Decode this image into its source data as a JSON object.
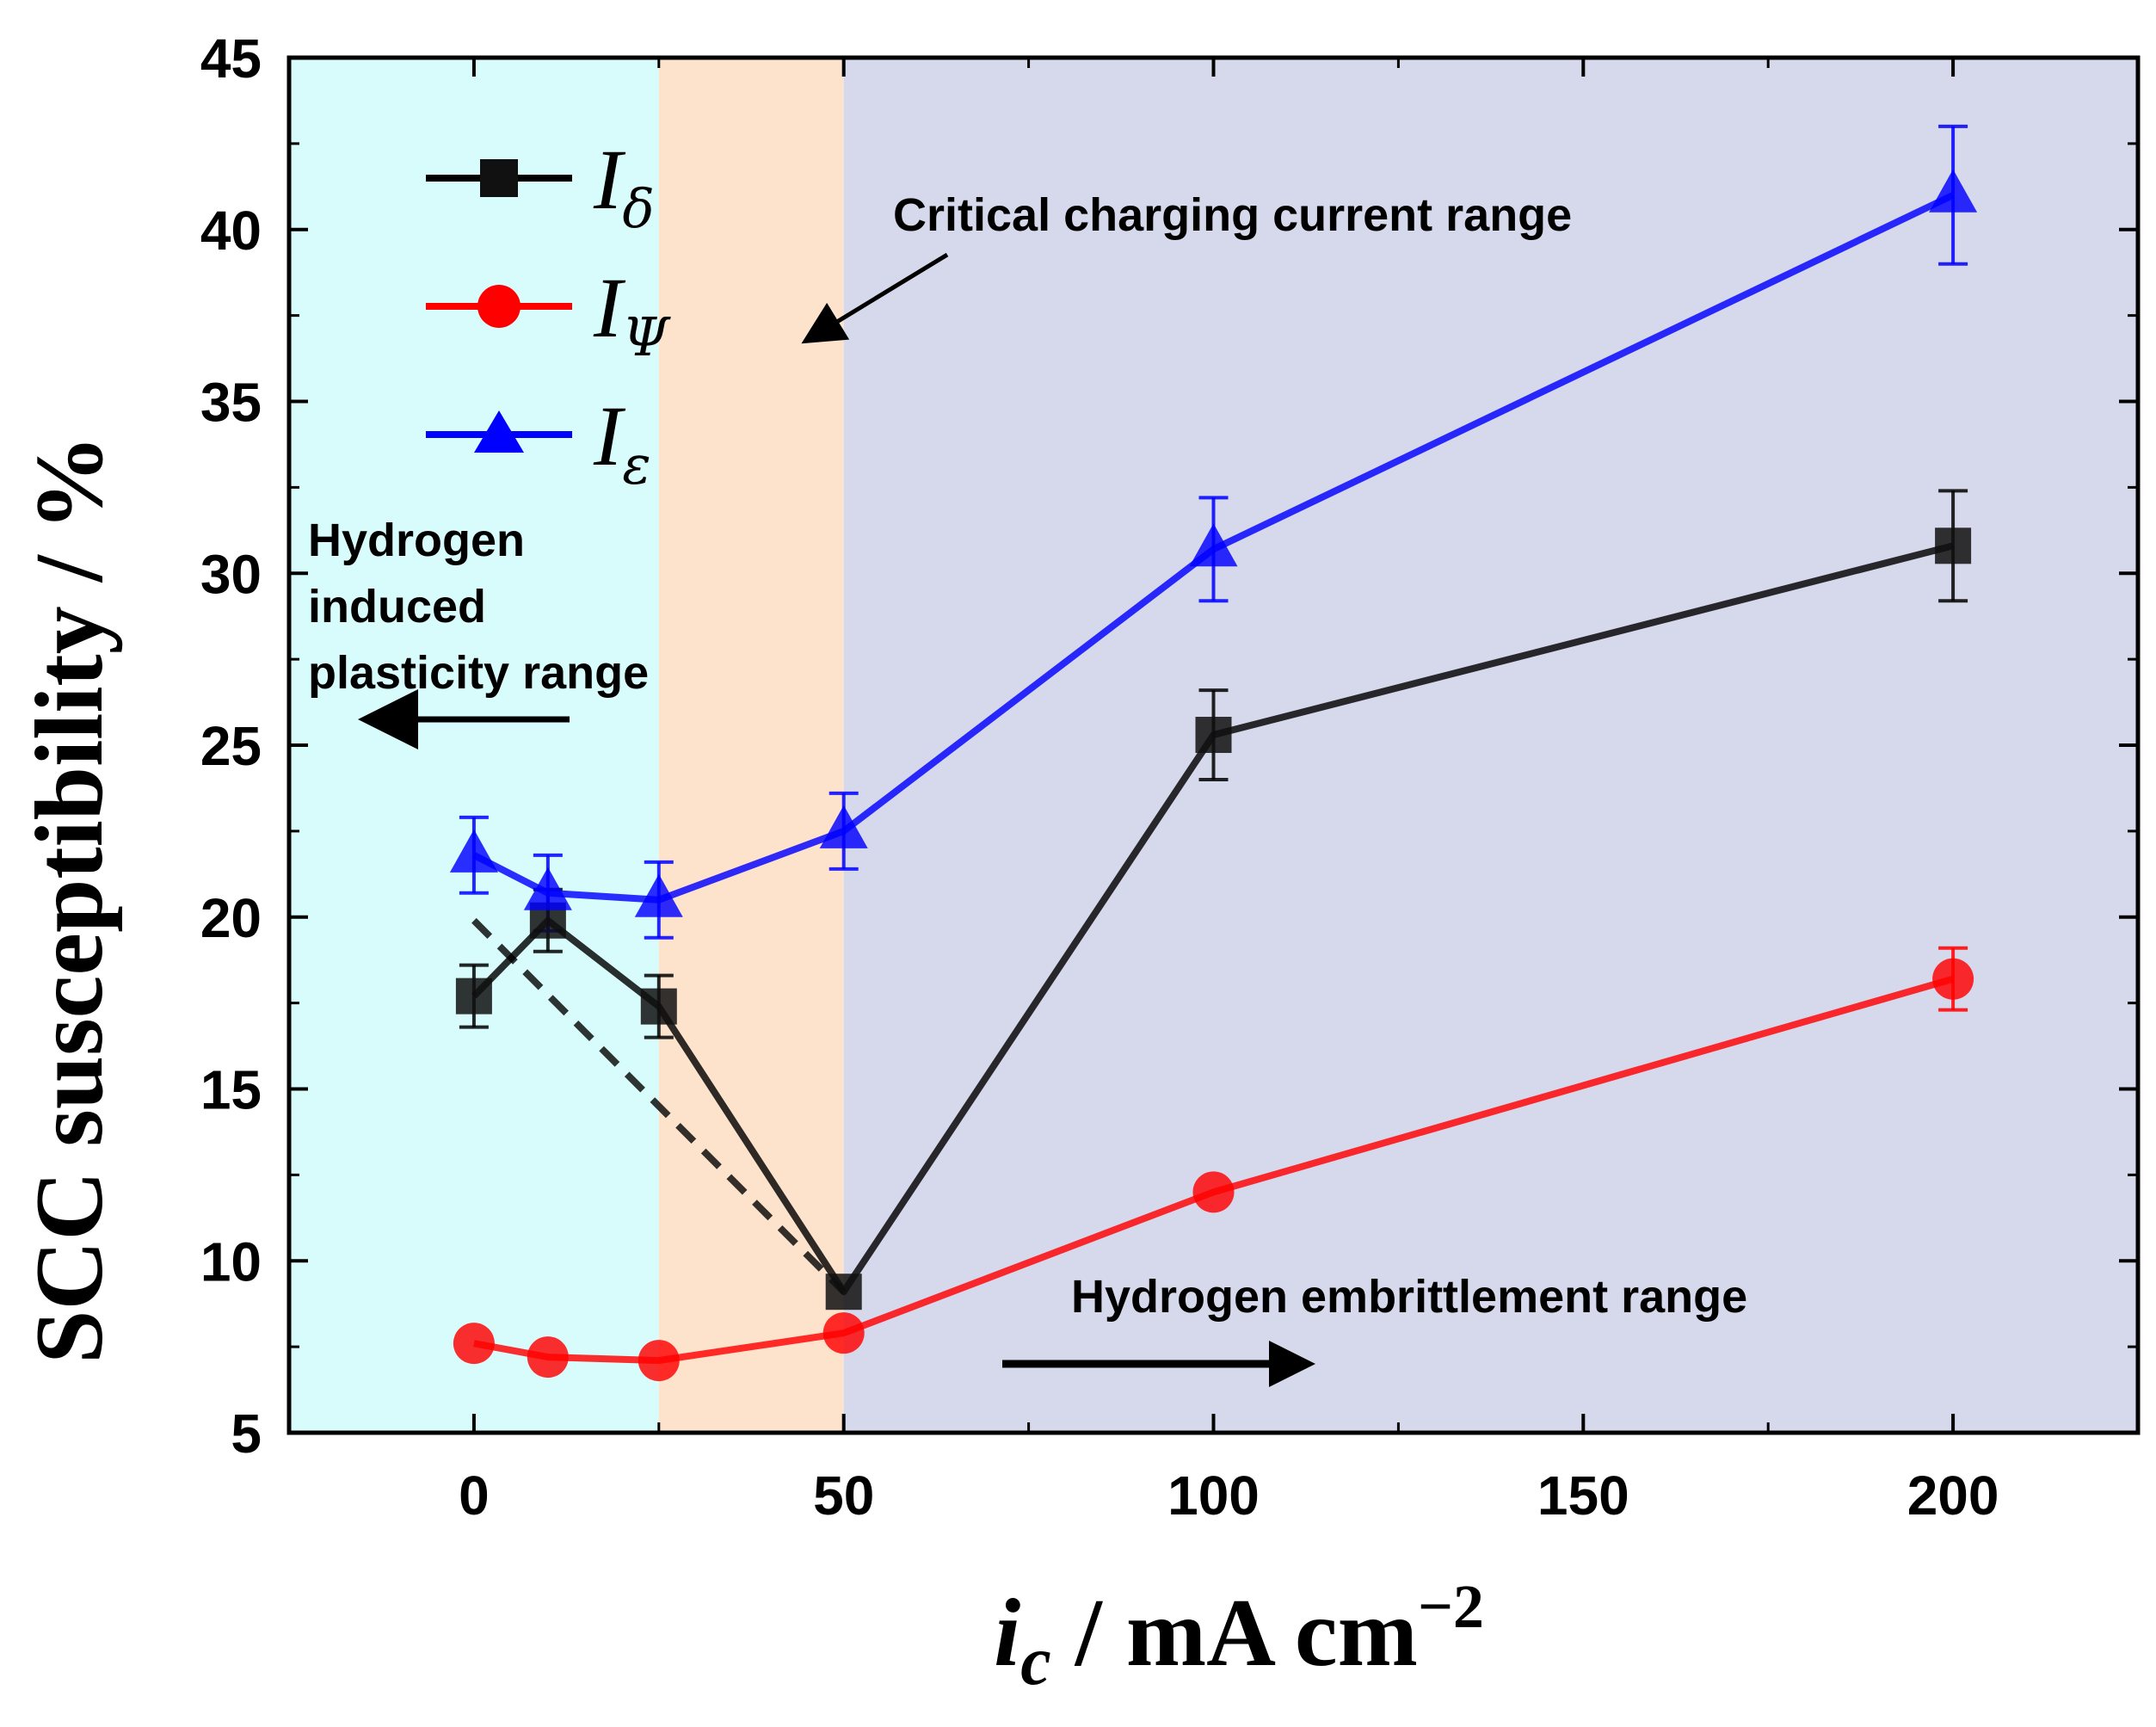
{
  "chart_data": {
    "type": "line",
    "ylabel": "SCC susceptibility / %",
    "xlabel": {
      "main": "i",
      "sub": "c",
      "rest": " / mA cm",
      "sup": "−2"
    },
    "xlim": [
      -25,
      225
    ],
    "ylim": [
      5,
      45
    ],
    "xticks": [
      0,
      50,
      100,
      150,
      200
    ],
    "yticks": [
      5,
      10,
      15,
      20,
      25,
      30,
      35,
      40,
      45
    ],
    "regions": [
      {
        "name": "hydrogen-induced-plasticity",
        "x0": -25,
        "x1": 25,
        "color": "#d8fcfc"
      },
      {
        "name": "critical-charging-current",
        "x0": 25,
        "x1": 50,
        "color": "#fde3cc"
      },
      {
        "name": "hydrogen-embrittlement",
        "x0": 50,
        "x1": 225,
        "color": "#d6d8eb"
      }
    ],
    "series": [
      {
        "name": "I_delta",
        "label_main": "I",
        "label_sub": "δ",
        "color": "#000000",
        "marker": "square",
        "x": [
          0,
          10,
          25,
          50,
          100,
          200
        ],
        "values": [
          17.7,
          19.9,
          17.4,
          9.1,
          25.3,
          30.8
        ],
        "errors": [
          0.9,
          0.9,
          0.9,
          0.0,
          1.3,
          1.6
        ]
      },
      {
        "name": "I_psi",
        "label_main": "I",
        "label_sub": "Ψ",
        "color": "#ff0000",
        "marker": "circle",
        "x": [
          0,
          10,
          25,
          50,
          100,
          200
        ],
        "values": [
          7.6,
          7.2,
          7.1,
          7.9,
          12.0,
          18.2
        ],
        "errors": [
          0.0,
          0.0,
          0.0,
          0.0,
          0.0,
          0.9
        ]
      },
      {
        "name": "I_epsilon",
        "label_main": "I",
        "label_sub": "ε",
        "color": "#0000ff",
        "marker": "triangle",
        "x": [
          0,
          10,
          25,
          50,
          100,
          200
        ],
        "values": [
          21.8,
          20.7,
          20.5,
          22.5,
          30.7,
          41.0
        ],
        "errors": [
          1.1,
          1.1,
          1.1,
          1.1,
          1.5,
          2.0
        ]
      }
    ],
    "trend_line": {
      "x": [
        0,
        50
      ],
      "values": [
        19.9,
        9.1
      ],
      "style": "dashed"
    },
    "annotations": [
      {
        "name": "critical-range-label",
        "text": "Critical charging current range"
      },
      {
        "name": "plasticity-label",
        "lines": [
          "Hydrogen",
          "induced",
          "plasticity range"
        ]
      },
      {
        "name": "embrittlement-label",
        "text": "Hydrogen embrittlement range"
      }
    ],
    "legend": "top-left"
  }
}
